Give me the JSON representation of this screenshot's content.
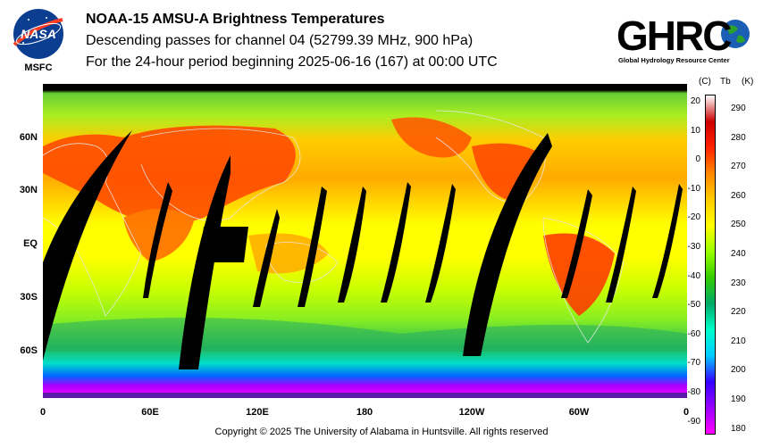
{
  "header": {
    "title": "NOAA-15 AMSU-A Brightness Temperatures",
    "subtitle": "Descending passes for channel 04 (52799.39 MHz, 900 hPa)",
    "period": "For the 24-hour period beginning 2025-06-16 (167) at 00:00 UTC"
  },
  "logos": {
    "nasa_text": "NASA",
    "nasa_caption": "MSFC",
    "ghrc_text": "GHRC",
    "ghrc_caption": "Global Hydrology Resource Center"
  },
  "map": {
    "lat_labels": [
      "60N",
      "30N",
      "EQ",
      "30S",
      "60S"
    ],
    "lon_labels": [
      "0",
      "60E",
      "120E",
      "180",
      "120W",
      "60W",
      "0"
    ]
  },
  "colorbar": {
    "unit_c": "(C)",
    "unit_tb": "Tb",
    "unit_k": "(K)",
    "celsius_ticks": [
      "20",
      "10",
      "0",
      "-10",
      "-20",
      "-30",
      "-40",
      "-50",
      "-60",
      "-70",
      "-80",
      "-90"
    ],
    "kelvin_ticks": [
      "290",
      "280",
      "270",
      "260",
      "250",
      "240",
      "230",
      "220",
      "210",
      "200",
      "190",
      "180"
    ],
    "colors": [
      "#ff00ff",
      "#9900ff",
      "#3300ff",
      "#00ccff",
      "#00ffcc",
      "#00aa66",
      "#33cc00",
      "#99ff00",
      "#ffff00",
      "#ffcc00",
      "#ff8800",
      "#ff2200",
      "#cc0000",
      "#ffffff"
    ]
  },
  "footer": {
    "copyright": "Copyright © 2025 The University of Alabama in Huntsville.  All rights reserved"
  }
}
